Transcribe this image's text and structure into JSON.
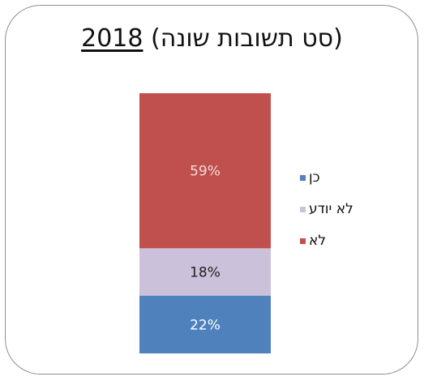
{
  "title": {
    "year": "2018",
    "subtitle": "(סט תשובות שונה)"
  },
  "colors": {
    "yes": "#4f81bd",
    "dont_know": "#ccc1da",
    "no": "#c0504d",
    "label_light": "#f2dcdb",
    "label_dark": "#222222"
  },
  "chart_data": {
    "type": "bar",
    "stacked": true,
    "title": "2018 (סט תשובות שונה)",
    "categories": [
      "2018"
    ],
    "series": [
      {
        "name": "כן",
        "values": [
          22
        ],
        "label": "22%",
        "color": "#4f81bd"
      },
      {
        "name": "לא יודע",
        "values": [
          18
        ],
        "label": "18%",
        "color": "#ccc1da"
      },
      {
        "name": "לא",
        "values": [
          59
        ],
        "label": "59%",
        "color": "#c0504d"
      }
    ],
    "ylim": [
      0,
      99
    ],
    "grid": false,
    "legend_position": "right"
  },
  "legend": {
    "items": [
      {
        "label": "כן",
        "color": "#4f81bd"
      },
      {
        "label": "לא יודע",
        "color": "#ccc1da"
      },
      {
        "label": "לא",
        "color": "#c0504d"
      }
    ]
  }
}
